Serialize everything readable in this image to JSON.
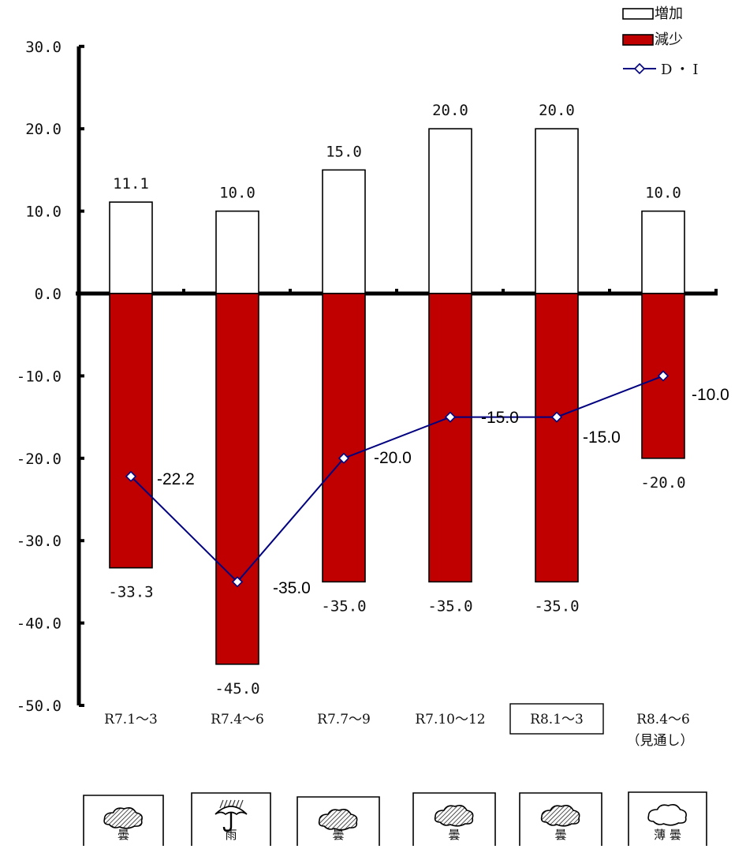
{
  "chart_data": {
    "type": "bar",
    "categories": [
      "R7.1～3",
      "R7.4～6",
      "R7.7～9",
      "R7.10～12",
      "R8.1～3",
      "R8.4～6"
    ],
    "category_sublabels": [
      "",
      "",
      "",
      "",
      "",
      "（見通し）"
    ],
    "highlighted_category": "R8.1～3",
    "series": [
      {
        "name": "増加",
        "kind": "bar",
        "color": "#ffffff",
        "border": "#000000",
        "values": [
          11.1,
          10.0,
          15.0,
          20.0,
          20.0,
          10.0
        ],
        "labels": [
          "11.1",
          "10.0",
          "15.0",
          "20.0",
          "20.0",
          "10.0"
        ]
      },
      {
        "name": "減少",
        "kind": "bar",
        "color": "#c00000",
        "border": "#000000",
        "values": [
          -33.3,
          -45.0,
          -35.0,
          -35.0,
          -35.0,
          -20.0
        ],
        "labels": [
          "-33.3",
          "-45.0",
          "-35.0",
          "-35.0",
          "-35.0",
          "-20.0"
        ]
      },
      {
        "name": "D・I",
        "kind": "line",
        "color": "#000080",
        "values": [
          -22.2,
          -35.0,
          -20.0,
          -15.0,
          -15.0,
          -10.0
        ],
        "labels": [
          "-22.2",
          "-35.0",
          "-20.0",
          "-15.0",
          "-15.0",
          "-10.0"
        ]
      }
    ],
    "yticks": [
      "30.0",
      "20.0",
      "10.0",
      "0.0",
      "-10.0",
      "-20.0",
      "-30.0",
      "-40.0",
      "-50.0"
    ],
    "ylim": [
      -50,
      30
    ],
    "legend_position": "top-right",
    "grid": false
  },
  "weather": [
    {
      "icon": "cloudy-icon",
      "label": "曇"
    },
    {
      "icon": "rain-icon",
      "label": "雨"
    },
    {
      "icon": "cloudy-icon",
      "label": "曇"
    },
    {
      "icon": "cloudy-icon",
      "label": "曇"
    },
    {
      "icon": "cloudy-icon",
      "label": "曇"
    },
    {
      "icon": "light-cloud-icon",
      "label": "薄 曇"
    }
  ]
}
